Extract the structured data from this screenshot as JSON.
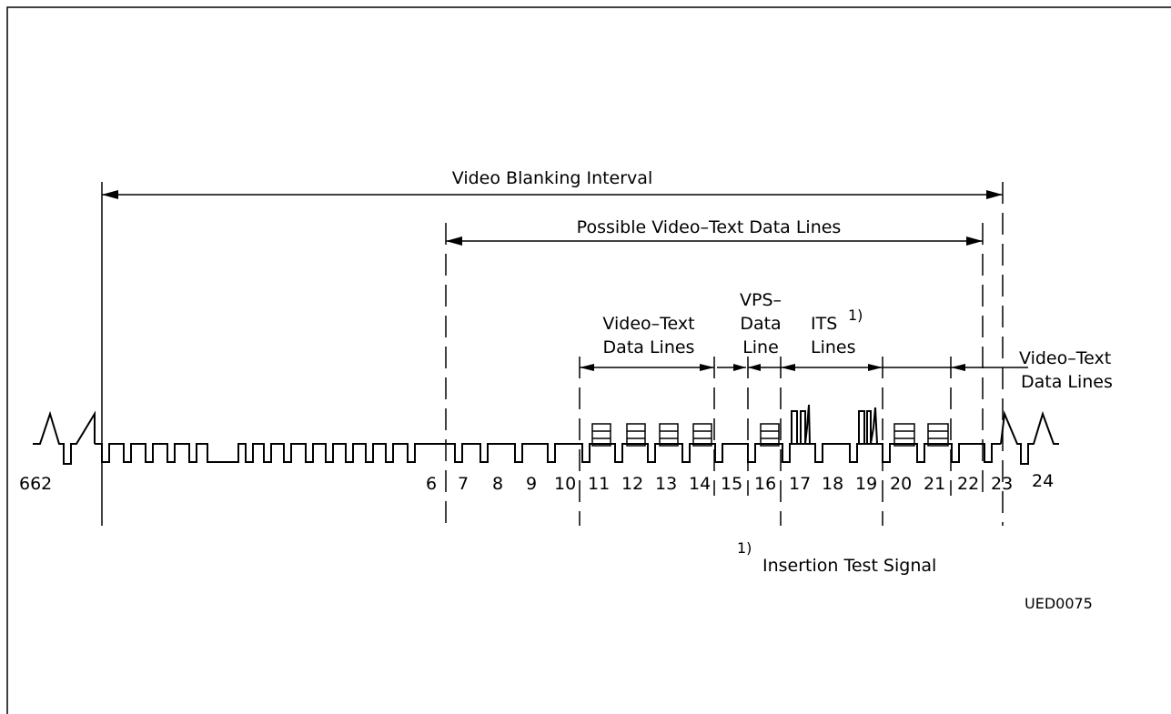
{
  "labels": {
    "blanking": "Video Blanking Interval",
    "possible": "Possible Video–Text Data Lines",
    "vt_left_1": "Video–Text",
    "vt_left_2": "Data  Lines",
    "vps_1": "VPS–",
    "vps_2": "Data",
    "vps_3": "Line",
    "its_1": "ITS",
    "its_sup": "1)",
    "its_2": "Lines",
    "vt_right_1": "Video–Text",
    "vt_right_2": "Data Lines",
    "footnote_sup": "1)",
    "footnote_text": "Insertion Test Signal",
    "code": "UED0075"
  },
  "line_numbers": [
    "662",
    "6",
    "7",
    "8",
    "9",
    "10",
    "11",
    "12",
    "13",
    "14",
    "15",
    "16",
    "17",
    "18",
    "19",
    "20",
    "21",
    "22",
    "23",
    "24"
  ]
}
